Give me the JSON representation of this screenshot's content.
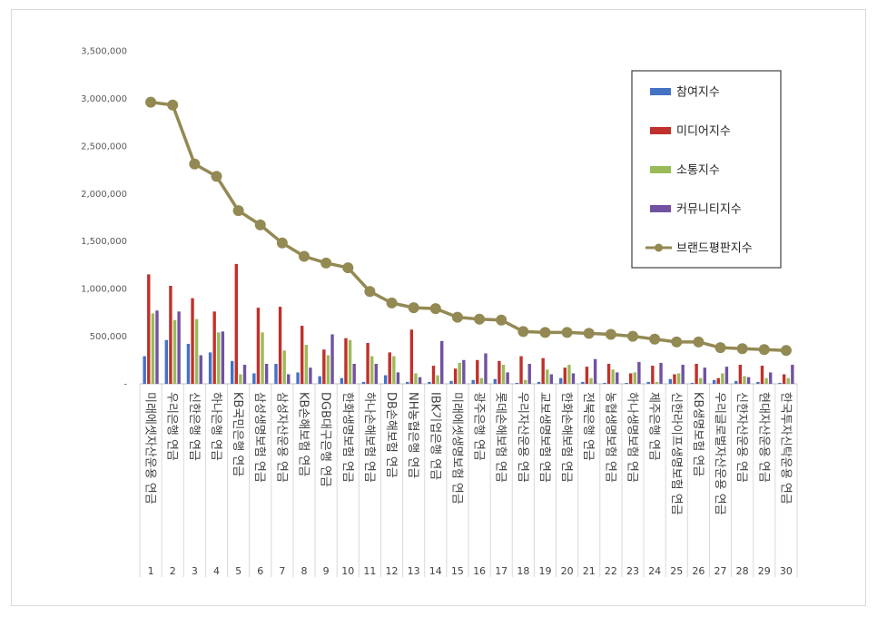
{
  "chart_data": {
    "type": "bar",
    "ylim": [
      0,
      3500000
    ],
    "yticks": [
      "-",
      "500,000",
      "1,000,000",
      "1,500,000",
      "2,000,000",
      "2,500,000",
      "3,000,000",
      "3,500,000"
    ],
    "grid": false,
    "legend_position": "top-right",
    "x_numbers": [
      "1",
      "2",
      "3",
      "4",
      "5",
      "6",
      "7",
      "8",
      "9",
      "10",
      "11",
      "12",
      "13",
      "14",
      "15",
      "16",
      "17",
      "18",
      "19",
      "20",
      "21",
      "22",
      "23",
      "24",
      "25",
      "26",
      "27",
      "28",
      "29",
      "30"
    ],
    "categories": [
      "미래에셋자산운용 연금",
      "우리은행 연금",
      "신한은행 연금",
      "하나은행 연금",
      "KB국민은행 연금",
      "삼성생명보험 연금",
      "삼성자산운용 연금",
      "KB손해보험 연금",
      "DGB대구은행 연금",
      "한화생명보험 연금",
      "하나손해보험 연금",
      "DB손해보험 연금",
      "NH농협은행 연금",
      "IBK기업은행 연금",
      "미래에셋생명보험 연금",
      "광주은행 연금",
      "롯데손해보험 연금",
      "우리자산운용 연금",
      "교보생명보험 연금",
      "한화손해보험 연금",
      "전북은행 연금",
      "농협생명보험 연금",
      "하나생명보험 연금",
      "제주은행 연금",
      "신한라이프생명보험 연금",
      "KB생명보험 연금",
      "우리글로벌자산운용 연금",
      "신한자산운용 연금",
      "현대자산운용 연금",
      "한국투자신탁운용 연금"
    ],
    "series": [
      {
        "name": "참여지수",
        "color": "#4472c4",
        "kind": "bar",
        "values": [
          290000,
          460000,
          420000,
          330000,
          240000,
          110000,
          210000,
          120000,
          80000,
          60000,
          20000,
          90000,
          20000,
          20000,
          30000,
          40000,
          50000,
          10000,
          20000,
          60000,
          20000,
          10000,
          10000,
          20000,
          50000,
          10000,
          40000,
          30000,
          20000,
          10000
        ]
      },
      {
        "name": "미디어지수",
        "color": "#c0312c",
        "kind": "bar",
        "values": [
          1150000,
          1030000,
          900000,
          760000,
          1260000,
          800000,
          810000,
          610000,
          360000,
          480000,
          430000,
          330000,
          570000,
          190000,
          160000,
          250000,
          240000,
          290000,
          270000,
          170000,
          180000,
          210000,
          110000,
          190000,
          100000,
          210000,
          60000,
          200000,
          190000,
          100000
        ]
      },
      {
        "name": "소통지수",
        "color": "#9bbb59",
        "kind": "bar",
        "values": [
          740000,
          670000,
          680000,
          540000,
          100000,
          540000,
          350000,
          410000,
          300000,
          460000,
          290000,
          290000,
          110000,
          90000,
          220000,
          60000,
          200000,
          40000,
          150000,
          200000,
          60000,
          150000,
          120000,
          20000,
          110000,
          60000,
          110000,
          80000,
          60000,
          60000
        ]
      },
      {
        "name": "커뮤니티지수",
        "color": "#7152a0",
        "kind": "bar",
        "values": [
          770000,
          760000,
          300000,
          550000,
          200000,
          210000,
          100000,
          170000,
          520000,
          210000,
          210000,
          120000,
          70000,
          450000,
          250000,
          320000,
          120000,
          210000,
          100000,
          110000,
          260000,
          120000,
          230000,
          220000,
          200000,
          170000,
          180000,
          70000,
          120000,
          200000
        ]
      },
      {
        "name": "브랜드평판지수",
        "color": "#938953",
        "kind": "line",
        "values": [
          2960000,
          2930000,
          2310000,
          2180000,
          1820000,
          1670000,
          1480000,
          1340000,
          1270000,
          1220000,
          970000,
          850000,
          800000,
          790000,
          700000,
          680000,
          670000,
          550000,
          540000,
          540000,
          530000,
          520000,
          500000,
          470000,
          440000,
          440000,
          380000,
          370000,
          360000,
          350000
        ]
      }
    ]
  }
}
